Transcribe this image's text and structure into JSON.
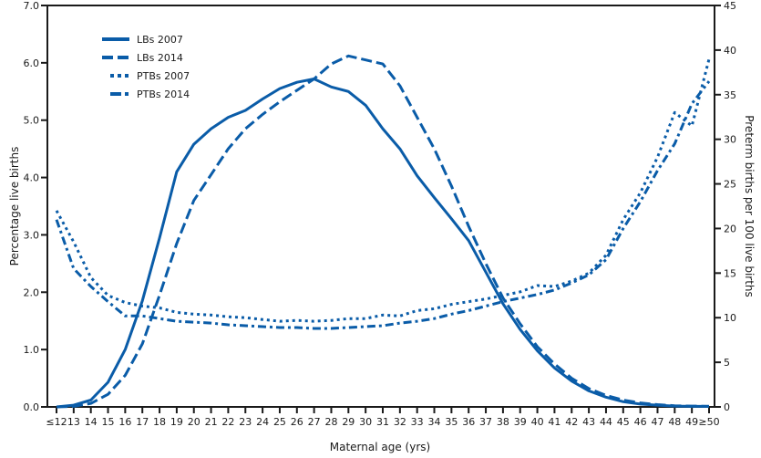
{
  "chart_data": {
    "type": "line",
    "title": "",
    "xlabel": "Maternal age (yrs)",
    "ylabel_left": "Percentage live births",
    "ylabel_right": "Preterm births per 100 live births",
    "x": [
      "≤12",
      "13",
      "14",
      "15",
      "16",
      "17",
      "18",
      "19",
      "20",
      "21",
      "22",
      "23",
      "24",
      "25",
      "26",
      "27",
      "28",
      "29",
      "30",
      "31",
      "32",
      "33",
      "34",
      "35",
      "36",
      "37",
      "38",
      "39",
      "40",
      "41",
      "42",
      "43",
      "44",
      "45",
      "46",
      "47",
      "48",
      "49",
      "≥50"
    ],
    "ylim_left": [
      0,
      7
    ],
    "ylim_right": [
      0,
      45
    ],
    "yticks_left": [
      "0.0",
      "1.0",
      "2.0",
      "3.0",
      "4.0",
      "5.0",
      "6.0",
      "7.0"
    ],
    "yticks_right": [
      "0",
      "5",
      "10",
      "15",
      "20",
      "25",
      "30",
      "35",
      "40",
      "45"
    ],
    "grid": false,
    "legend_position": "top-left",
    "color": "#0a5ca8",
    "series": [
      {
        "name": "LBs 2007",
        "axis": "left",
        "style": "solid",
        "values": [
          0,
          0.03,
          0.12,
          0.43,
          1.0,
          1.85,
          2.95,
          4.1,
          4.58,
          4.85,
          5.05,
          5.17,
          5.37,
          5.55,
          5.66,
          5.72,
          5.58,
          5.5,
          5.26,
          4.85,
          4.5,
          4.03,
          3.65,
          3.28,
          2.9,
          2.35,
          1.8,
          1.35,
          0.98,
          0.68,
          0.45,
          0.28,
          0.17,
          0.09,
          0.05,
          0.03,
          0.015,
          0.01,
          0.01
        ]
      },
      {
        "name": "LBs 2014",
        "axis": "left",
        "style": "dashed",
        "values": [
          0,
          0.01,
          0.06,
          0.22,
          0.55,
          1.1,
          1.95,
          2.85,
          3.6,
          4.05,
          4.5,
          4.85,
          5.1,
          5.32,
          5.52,
          5.72,
          5.98,
          6.12,
          6.05,
          5.98,
          5.6,
          5.05,
          4.5,
          3.85,
          3.15,
          2.5,
          1.9,
          1.45,
          1.05,
          0.75,
          0.5,
          0.32,
          0.2,
          0.12,
          0.07,
          0.04,
          0.02,
          0.015,
          0.01
        ]
      },
      {
        "name": "PTBs 2007",
        "axis": "right",
        "style": "dotted",
        "values": [
          22,
          18.5,
          14.5,
          12.5,
          11.7,
          11.3,
          11.1,
          10.6,
          10.4,
          10.3,
          10.1,
          10.0,
          9.8,
          9.6,
          9.7,
          9.6,
          9.7,
          9.9,
          9.9,
          10.3,
          10.2,
          10.8,
          11.0,
          11.5,
          11.8,
          12.1,
          12.5,
          12.9,
          13.6,
          13.5,
          14.1,
          15.0,
          17.0,
          21.0,
          24.0,
          28.0,
          33.0,
          31.5,
          39.0
        ]
      },
      {
        "name": "PTBs 2014",
        "axis": "right",
        "style": "dashdot",
        "values": [
          21,
          15.5,
          13.5,
          11.8,
          10.2,
          10.2,
          9.9,
          9.6,
          9.5,
          9.4,
          9.2,
          9.1,
          9.0,
          8.9,
          8.9,
          8.8,
          8.8,
          8.9,
          9.0,
          9.1,
          9.4,
          9.6,
          9.9,
          10.4,
          10.8,
          11.3,
          11.8,
          12.2,
          12.6,
          13.1,
          13.9,
          14.8,
          16.5,
          20.0,
          23.0,
          26.5,
          29.5,
          34.0,
          36.5
        ]
      }
    ]
  }
}
